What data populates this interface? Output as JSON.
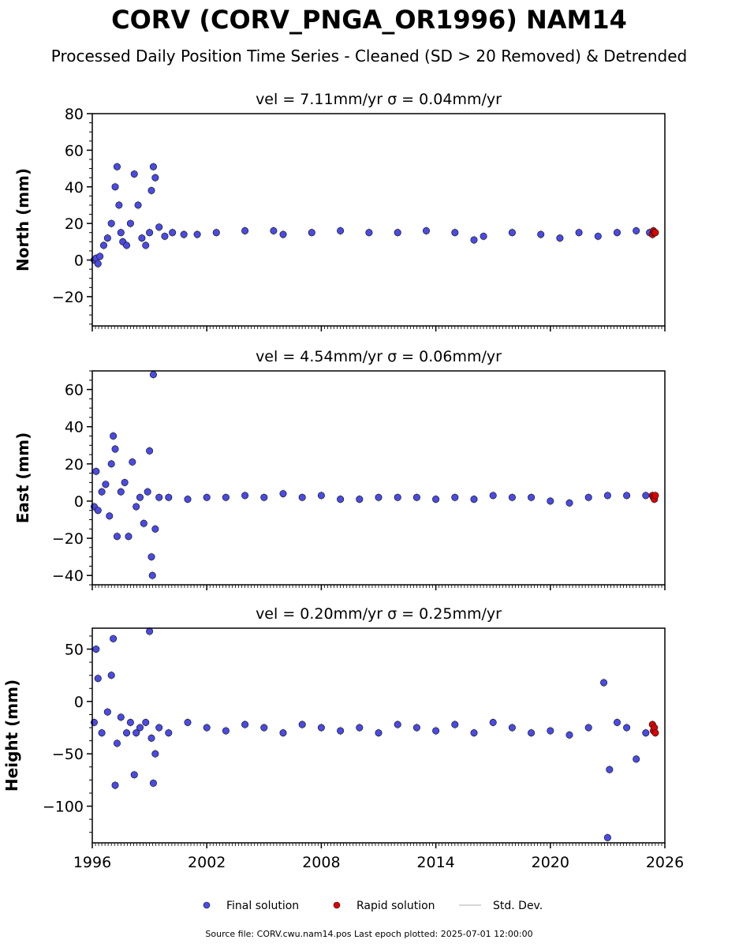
{
  "title": "CORV (CORV_PNGA_OR1996) NAM14",
  "subtitle": "Processed Daily Position Time Series - Cleaned (SD > 20 Removed) & Detrended",
  "footer": "Source file: CORV.cwu.nam14.pos  Last epoch plotted: 2025-07-01 12:00:00",
  "legend": [
    {
      "label": "Final solution",
      "color": "#4a4ae6",
      "marker": "circle"
    },
    {
      "label": "Rapid solution",
      "color": "#e00000",
      "marker": "circle"
    },
    {
      "label": "Std. Dev.",
      "color": "#c8c8c8",
      "marker": "line"
    }
  ],
  "chart_data": [
    {
      "type": "scatter",
      "title": "vel = 7.11mm/yr   σ = 0.04mm/yr",
      "ylabel": "North (mm)",
      "xlim": [
        1996,
        2026
      ],
      "ylim": [
        -36,
        80
      ],
      "yticks": [
        -20,
        0,
        20,
        40,
        60,
        80
      ],
      "ytick_labels": [
        "−20",
        "0",
        "20",
        "40",
        "60",
        "80"
      ],
      "xticks": [
        1996,
        2002,
        2008,
        2014,
        2020,
        2026
      ],
      "xtick_labels": [],
      "grid": false,
      "series": [
        {
          "name": "Final solution",
          "x": [
            1996.1,
            1996.2,
            1996.3,
            1996.4,
            1996.6,
            1996.8,
            1997.0,
            1997.2,
            1997.3,
            1997.4,
            1997.5,
            1997.6,
            1997.8,
            1998.0,
            1998.2,
            1998.4,
            1998.6,
            1998.8,
            1999.0,
            1999.1,
            1999.2,
            1999.3,
            1999.5,
            1999.8,
            2000.2,
            2000.8,
            2001.5,
            2002.5,
            2004.0,
            2005.5,
            2006.0,
            2007.5,
            2009.0,
            2010.5,
            2012.0,
            2013.5,
            2015.0,
            2016.0,
            2016.5,
            2018.0,
            2019.5,
            2020.5,
            2021.5,
            2022.5,
            2023.5,
            2024.5,
            2025.2
          ],
          "y": [
            0,
            1,
            -2,
            2,
            8,
            12,
            20,
            40,
            51,
            30,
            15,
            10,
            8,
            20,
            47,
            30,
            12,
            8,
            15,
            38,
            51,
            45,
            18,
            13,
            15,
            14,
            14,
            15,
            16,
            16,
            14,
            15,
            16,
            15,
            15,
            16,
            15,
            11,
            13,
            15,
            14,
            12,
            15,
            13,
            15,
            16,
            15
          ]
        },
        {
          "name": "Rapid solution",
          "x": [
            2025.35,
            2025.4,
            2025.45,
            2025.5
          ],
          "y": [
            14,
            16,
            15,
            15
          ]
        }
      ]
    },
    {
      "type": "scatter",
      "title": "vel = 4.54mm/yr   σ = 0.06mm/yr",
      "ylabel": "East (mm)",
      "xlim": [
        1996,
        2026
      ],
      "ylim": [
        -45,
        70
      ],
      "yticks": [
        -40,
        -20,
        0,
        20,
        40,
        60
      ],
      "ytick_labels": [
        "−40",
        "−20",
        "0",
        "20",
        "40",
        "60"
      ],
      "xticks": [
        1996,
        2002,
        2008,
        2014,
        2020,
        2026
      ],
      "xtick_labels": [],
      "grid": false,
      "series": [
        {
          "name": "Final solution",
          "x": [
            1996.1,
            1996.2,
            1996.3,
            1996.5,
            1996.7,
            1996.9,
            1997.0,
            1997.1,
            1997.2,
            1997.3,
            1997.5,
            1997.7,
            1997.9,
            1998.1,
            1998.3,
            1998.5,
            1998.7,
            1998.9,
            1999.0,
            1999.1,
            1999.15,
            1999.2,
            1999.3,
            1999.5,
            2000.0,
            2001.0,
            2002.0,
            2003.0,
            2004.0,
            2005.0,
            2006.0,
            2007.0,
            2008.0,
            2009.0,
            2010.0,
            2011.0,
            2012.0,
            2013.0,
            2014.0,
            2015.0,
            2016.0,
            2017.0,
            2018.0,
            2019.0,
            2020.0,
            2021.0,
            2022.0,
            2023.0,
            2024.0,
            2025.0
          ],
          "y": [
            -3,
            16,
            -5,
            5,
            9,
            -8,
            20,
            35,
            28,
            -19,
            5,
            10,
            -19,
            21,
            -3,
            2,
            -12,
            5,
            27,
            -30,
            -40,
            68,
            -15,
            2,
            2,
            1,
            2,
            2,
            3,
            2,
            4,
            2,
            3,
            1,
            1,
            2,
            2,
            2,
            1,
            2,
            1,
            3,
            2,
            2,
            0,
            -1,
            2,
            3,
            3,
            3
          ]
        },
        {
          "name": "Rapid solution",
          "x": [
            2025.35,
            2025.4,
            2025.45,
            2025.5
          ],
          "y": [
            3,
            2,
            1,
            3
          ]
        }
      ]
    },
    {
      "type": "scatter",
      "title": "vel = 0.20mm/yr   σ = 0.25mm/yr",
      "ylabel": "Height (mm)",
      "xlim": [
        1996,
        2026
      ],
      "ylim": [
        -135,
        70
      ],
      "yticks": [
        -100,
        -50,
        0,
        50
      ],
      "ytick_labels": [
        "−100",
        "−50",
        "0",
        "50"
      ],
      "xticks": [
        1996,
        2002,
        2008,
        2014,
        2020,
        2026
      ],
      "xtick_labels": [
        "1996",
        "2002",
        "2008",
        "2014",
        "2020",
        "2026"
      ],
      "grid": false,
      "series": [
        {
          "name": "Final solution",
          "x": [
            1996.1,
            1996.2,
            1996.3,
            1996.5,
            1996.8,
            1997.0,
            1997.1,
            1997.2,
            1997.3,
            1997.5,
            1997.8,
            1998.0,
            1998.2,
            1998.3,
            1998.5,
            1998.8,
            1999.0,
            1999.1,
            1999.2,
            1999.3,
            1999.5,
            2000.0,
            2001.0,
            2002.0,
            2003.0,
            2004.0,
            2005.0,
            2006.0,
            2007.0,
            2008.0,
            2009.0,
            2010.0,
            2011.0,
            2012.0,
            2013.0,
            2014.0,
            2015.0,
            2016.0,
            2017.0,
            2018.0,
            2019.0,
            2020.0,
            2021.0,
            2022.0,
            2022.8,
            2023.0,
            2023.1,
            2023.5,
            2024.0,
            2024.5,
            2025.0
          ],
          "y": [
            -20,
            50,
            22,
            -30,
            -10,
            25,
            60,
            -80,
            -40,
            -15,
            -30,
            -20,
            -70,
            -30,
            -25,
            -20,
            67,
            -35,
            -78,
            -50,
            -25,
            -30,
            -20,
            -25,
            -28,
            -22,
            -25,
            -30,
            -22,
            -25,
            -28,
            -25,
            -30,
            -22,
            -25,
            -28,
            -22,
            -30,
            -20,
            -25,
            -30,
            -28,
            -32,
            -25,
            18,
            -130,
            -65,
            -20,
            -25,
            -55,
            -30
          ]
        },
        {
          "name": "Rapid solution",
          "x": [
            2025.35,
            2025.4,
            2025.45,
            2025.5
          ],
          "y": [
            -22,
            -28,
            -25,
            -30
          ]
        }
      ]
    }
  ]
}
